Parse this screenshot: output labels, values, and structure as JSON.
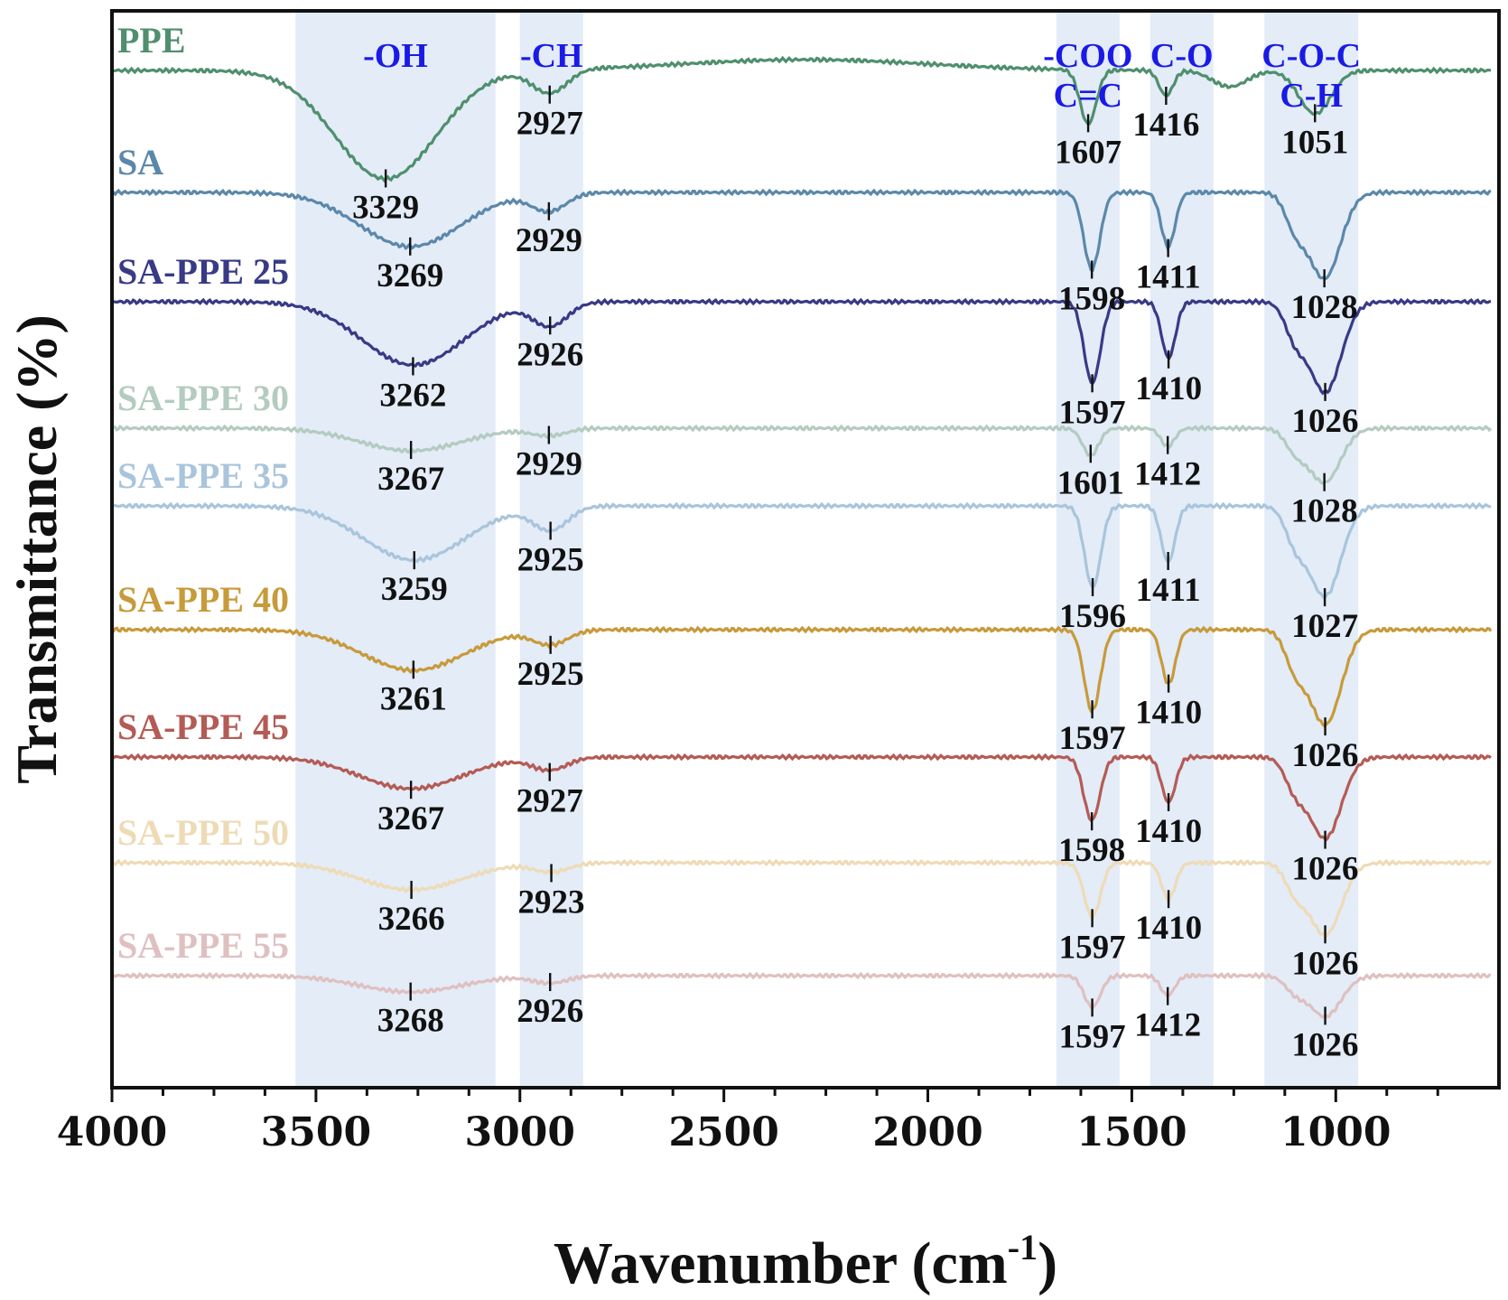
{
  "chart_data": {
    "type": "line",
    "title": "",
    "xlabel": "Wavenumber (cm",
    "xlabel_sup": "-1",
    "xlabel_close": ")",
    "ylabel": "Transmittance (%)",
    "xlim": [
      4000,
      600
    ],
    "x_ticks": [
      4000,
      3500,
      3000,
      2500,
      2000,
      1500,
      1000
    ],
    "x_tick_labels": [
      "4000",
      "3500",
      "3000",
      "2500",
      "2000",
      "1500",
      "1000"
    ],
    "bands": [
      {
        "name": "-OH",
        "lines": [
          "-OH"
        ],
        "from": 3550,
        "to": 3060
      },
      {
        "name": "-CH",
        "lines": [
          "-CH"
        ],
        "from": 3000,
        "to": 2845
      },
      {
        "name": "-COO",
        "lines": [
          "-COO",
          "C=C"
        ],
        "from": 1685,
        "to": 1530
      },
      {
        "name": "C-O",
        "lines": [
          "C-O"
        ],
        "from": 1455,
        "to": 1300
      },
      {
        "name": "C-O-C",
        "lines": [
          "C-O-C",
          "C-H"
        ],
        "from": 1175,
        "to": 945
      }
    ],
    "series": [
      {
        "name": "PPE",
        "color": "#4f8f6e",
        "peaks": [
          3329,
          2927,
          1607,
          1416,
          1051
        ]
      },
      {
        "name": "SA",
        "color": "#5b88aa",
        "peaks": [
          3269,
          2929,
          1598,
          1411,
          1028
        ]
      },
      {
        "name": "SA-PPE 25",
        "color": "#383a86",
        "peaks": [
          3262,
          2926,
          1597,
          1410,
          1026
        ]
      },
      {
        "name": "SA-PPE 30",
        "color": "#b4cbc0",
        "peaks": [
          3267,
          2929,
          1601,
          1412,
          1028
        ]
      },
      {
        "name": "SA-PPE 35",
        "color": "#a9c5dc",
        "peaks": [
          3259,
          2925,
          1596,
          1411,
          1027
        ]
      },
      {
        "name": "SA-PPE 40",
        "color": "#c79a3a",
        "peaks": [
          3261,
          2925,
          1597,
          1410,
          1026
        ]
      },
      {
        "name": "SA-PPE 45",
        "color": "#b45b55",
        "peaks": [
          3267,
          2927,
          1598,
          1410,
          1026
        ]
      },
      {
        "name": "SA-PPE 50",
        "color": "#eedbb6",
        "peaks": [
          3266,
          2923,
          1597,
          1410,
          1026
        ]
      },
      {
        "name": "SA-PPE 55",
        "color": "#dfc0c0",
        "peaks": [
          3268,
          2926,
          1597,
          1412,
          1026
        ]
      }
    ],
    "grid": false,
    "legend": "none; series names printed at left of each trace"
  }
}
